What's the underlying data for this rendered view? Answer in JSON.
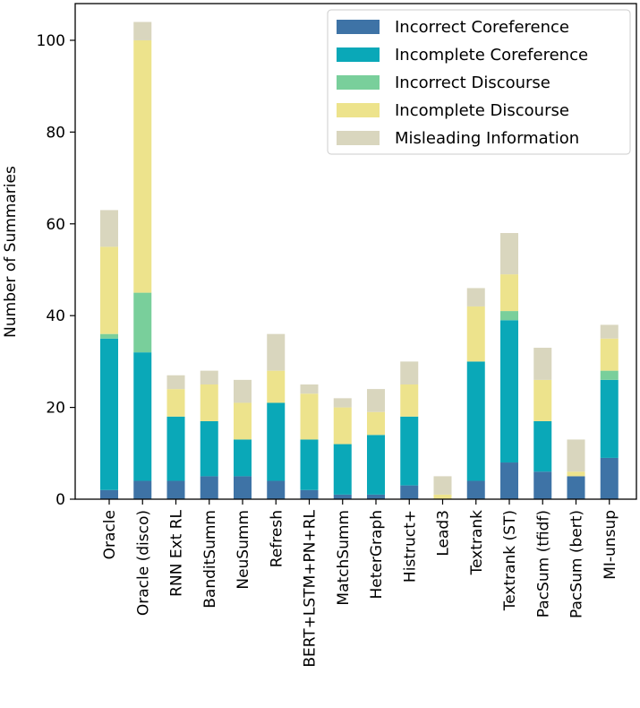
{
  "chart_data": {
    "type": "bar",
    "stacked": true,
    "title": "",
    "xlabel": "",
    "ylabel": "Number of Summaries",
    "ylim": [
      0,
      108
    ],
    "yticks": [
      0,
      20,
      40,
      60,
      80,
      100
    ],
    "legend_position": "top-right",
    "categories": [
      "Oracle",
      "Oracle (disco)",
      "RNN Ext RL",
      "BanditSumm",
      "NeuSumm",
      "Refresh",
      "BERT+LSTM+PN+RL",
      "MatchSumm",
      "HeterGraph",
      "Histruct+",
      "Lead3",
      "Textrank",
      "Textrank (ST)",
      "PacSum (tfidf)",
      "PacSum (bert)",
      "MI-unsup"
    ],
    "series": [
      {
        "name": "Incorrect Coreference",
        "color": "#3e73a6",
        "values": [
          2,
          4,
          4,
          5,
          5,
          4,
          2,
          1,
          1,
          3,
          0,
          4,
          8,
          6,
          5,
          9
        ]
      },
      {
        "name": "Incomplete Coreference",
        "color": "#0aa8b8",
        "values": [
          33,
          28,
          14,
          12,
          8,
          17,
          11,
          11,
          13,
          15,
          0,
          26,
          31,
          11,
          0,
          17
        ]
      },
      {
        "name": "Incorrect Discourse",
        "color": "#79cf9b",
        "values": [
          1,
          13,
          0,
          0,
          0,
          0,
          0,
          0,
          0,
          0,
          0,
          0,
          2,
          0,
          0,
          2
        ]
      },
      {
        "name": "Incomplete Discourse",
        "color": "#ede38c",
        "values": [
          19,
          55,
          6,
          8,
          8,
          7,
          10,
          8,
          5,
          7,
          1,
          12,
          8,
          9,
          1,
          7
        ]
      },
      {
        "name": "Misleading Information",
        "color": "#d9d6be",
        "values": [
          8,
          4,
          3,
          3,
          5,
          8,
          2,
          2,
          5,
          5,
          4,
          4,
          9,
          7,
          7,
          3
        ]
      }
    ]
  }
}
